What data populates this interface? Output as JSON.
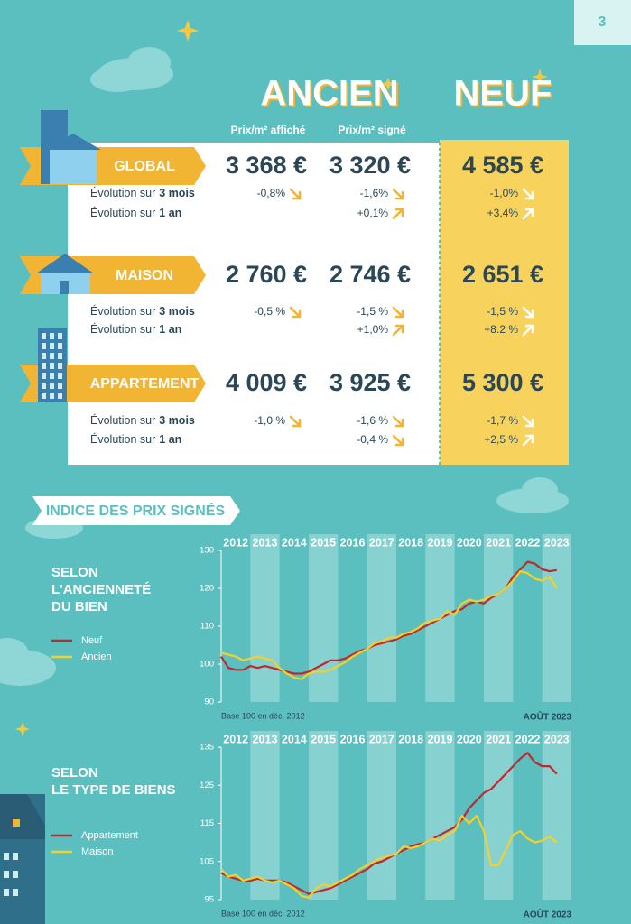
{
  "page_number": "3",
  "header": {
    "ancien": "ANCIEN",
    "neuf": "NEUF",
    "col_affiche": "Prix/m² affiché",
    "col_signe": "Prix/m² signé"
  },
  "table": {
    "rows": [
      {
        "label": "GLOBAL",
        "affiche": "3 368 €",
        "signe": "3 320 €",
        "neuf": "4 585 €",
        "evolutions": [
          {
            "prefix": "Évolution sur",
            "period": "3 mois",
            "affiche": "-0,8%",
            "signe": "-1,6%",
            "neuf": "-1,0%"
          },
          {
            "prefix": "Évolution sur",
            "period": "1 an",
            "signe": "+0,1%",
            "neuf": "+3,4%"
          }
        ]
      },
      {
        "label": "MAISON",
        "affiche": "2 760 €",
        "signe": "2 746 €",
        "neuf": "2 651 €",
        "evolutions": [
          {
            "prefix": "Évolution sur",
            "period": "3 mois",
            "affiche": "-0,5 %",
            "signe": "-1,5 %",
            "neuf": "-1,5 %"
          },
          {
            "prefix": "Évolution sur",
            "period": "1 an",
            "signe": "+1,0%",
            "neuf": "+8.2 %"
          }
        ]
      },
      {
        "label": "APPARTEMENT",
        "affiche": "4 009 €",
        "signe": "3 925 €",
        "neuf": "5 300 €",
        "evolutions": [
          {
            "prefix": "Évolution sur",
            "period": "3 mois",
            "affiche": "-1,0 %",
            "signe": "-1,6 %",
            "neuf": "-1,7 %"
          },
          {
            "prefix": "Évolution sur",
            "period": "1 an",
            "signe": "-0,4 %",
            "neuf": "+2,5 %"
          }
        ]
      }
    ]
  },
  "section_title": "INDICE DES PRIX SIGNÉS",
  "chart_data": [
    {
      "type": "line",
      "title": [
        "SELON",
        "L'ANCIENNETÉ",
        "DU BIEN"
      ],
      "x": [
        2012,
        2012.25,
        2012.5,
        2012.75,
        2013,
        2013.25,
        2013.5,
        2013.75,
        2014,
        2014.25,
        2014.5,
        2014.75,
        2015,
        2015.25,
        2015.5,
        2015.75,
        2016,
        2016.25,
        2016.5,
        2016.75,
        2017,
        2017.25,
        2017.5,
        2017.75,
        2018,
        2018.25,
        2018.5,
        2018.75,
        2019,
        2019.25,
        2019.5,
        2019.75,
        2020,
        2020.25,
        2020.5,
        2020.75,
        2021,
        2021.25,
        2021.5,
        2021.75,
        2022,
        2022.25,
        2022.5,
        2022.75,
        2023,
        2023.25,
        2023.5
      ],
      "xlim": [
        2012,
        2024
      ],
      "xticks": [
        2012,
        2013,
        2014,
        2015,
        2016,
        2017,
        2018,
        2019,
        2020,
        2021,
        2022,
        2023
      ],
      "ylim": [
        90,
        130
      ],
      "yticks": [
        90,
        100,
        110,
        120,
        130
      ],
      "series": [
        {
          "name": "Neuf",
          "color": "#c0282d",
          "values": [
            102,
            99,
            98.5,
            98.5,
            99.5,
            99,
            99.5,
            99,
            98.5,
            98,
            97.5,
            97.5,
            98,
            99,
            100,
            101,
            101,
            101.5,
            102.5,
            103.5,
            104,
            105,
            105.5,
            106,
            106.5,
            107.5,
            108,
            109,
            110,
            111,
            112,
            113,
            114,
            114.5,
            116,
            116.5,
            116,
            117.5,
            118.5,
            120,
            123,
            125,
            127,
            126.5,
            125,
            124.5,
            124.8
          ]
        },
        {
          "name": "Ancien",
          "color": "#f4d02a",
          "values": [
            103,
            102.5,
            102,
            101,
            101.5,
            102,
            101.5,
            101,
            99,
            97.5,
            96.5,
            96,
            97.5,
            98,
            98,
            98.5,
            99.5,
            100.5,
            102,
            103,
            104,
            105.5,
            106,
            107,
            107,
            108,
            108.5,
            109.5,
            111,
            111.5,
            112,
            114,
            113,
            116,
            117,
            116.5,
            117,
            118,
            118.5,
            120,
            122,
            124.5,
            124,
            122.5,
            122,
            123,
            120
          ]
        }
      ],
      "note": "Base 100 en déc. 2012",
      "date_label": "AOÛT 2023"
    },
    {
      "type": "line",
      "title": [
        "SELON",
        "LE TYPE DE BIENS"
      ],
      "x": [
        2012,
        2012.25,
        2012.5,
        2012.75,
        2013,
        2013.25,
        2013.5,
        2013.75,
        2014,
        2014.25,
        2014.5,
        2014.75,
        2015,
        2015.25,
        2015.5,
        2015.75,
        2016,
        2016.25,
        2016.5,
        2016.75,
        2017,
        2017.25,
        2017.5,
        2017.75,
        2018,
        2018.25,
        2018.5,
        2018.75,
        2019,
        2019.25,
        2019.5,
        2019.75,
        2020,
        2020.25,
        2020.5,
        2020.75,
        2021,
        2021.25,
        2021.5,
        2021.75,
        2022,
        2022.25,
        2022.5,
        2022.75,
        2023,
        2023.25,
        2023.5
      ],
      "xlim": [
        2012,
        2024
      ],
      "xticks": [
        2012,
        2013,
        2014,
        2015,
        2016,
        2017,
        2018,
        2019,
        2020,
        2021,
        2022,
        2023
      ],
      "ylim": [
        95,
        135
      ],
      "yticks": [
        95,
        105,
        115,
        125,
        135
      ],
      "series": [
        {
          "name": "Appartement",
          "color": "#c0282d",
          "values": [
            102,
            101,
            100.5,
            100,
            100,
            100.5,
            100,
            100,
            100,
            99.5,
            98.5,
            97.5,
            96.5,
            97,
            97.5,
            98,
            99,
            100,
            101,
            102,
            103,
            104.5,
            105,
            106,
            107,
            108,
            109,
            109.5,
            110,
            111,
            112,
            113,
            114,
            116,
            119,
            121,
            123,
            124,
            126,
            128,
            130,
            132,
            133.5,
            131,
            130,
            130,
            128
          ]
        },
        {
          "name": "Maison",
          "color": "#f4d02a",
          "values": [
            103,
            101,
            101.5,
            100,
            100.5,
            101,
            100,
            99.5,
            100,
            99,
            98,
            96,
            95.5,
            98,
            99,
            98.5,
            99.5,
            100.5,
            101.5,
            103,
            104,
            105,
            106,
            106.5,
            107,
            109,
            108.5,
            109,
            110,
            111,
            110.5,
            112,
            113,
            117,
            115,
            117,
            113,
            104,
            104,
            108,
            112,
            113,
            111,
            110,
            110.5,
            111.5,
            110
          ]
        }
      ],
      "note": "Base 100 en déc. 2012",
      "date_label": "AOÛT 2023"
    }
  ]
}
